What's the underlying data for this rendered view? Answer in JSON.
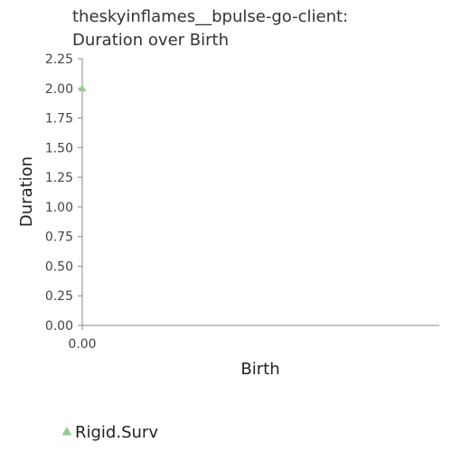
{
  "chart_data": {
    "type": "scatter",
    "title_lines": [
      "theskyinflames__bpulse-go-client:",
      "Duration over Birth"
    ],
    "xlabel": "Birth",
    "ylabel": "Duration",
    "x_ticks": [
      "0.00"
    ],
    "y_ticks": [
      "0.00",
      "0.25",
      "0.50",
      "0.75",
      "1.00",
      "1.25",
      "1.50",
      "1.75",
      "2.00",
      "2.25"
    ],
    "xlim": [
      0,
      1
    ],
    "ylim": [
      0,
      2.25
    ],
    "grid": false,
    "legend_position": "bottom-left",
    "series": [
      {
        "name": "Rigid.Surv",
        "marker": "triangle",
        "color": "#8fce8a",
        "points": [
          {
            "x": 0,
            "y": 2.0
          }
        ]
      }
    ]
  }
}
